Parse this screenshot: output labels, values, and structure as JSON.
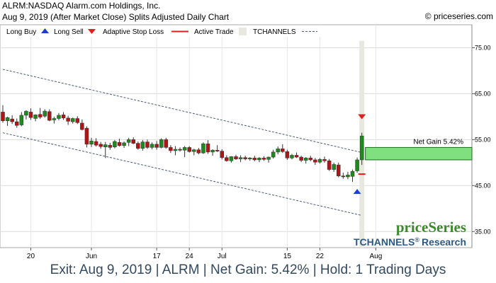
{
  "header": {
    "title": "ALRM:NASDAQ Alarm.com Holdings, Inc.",
    "subtitle": "Aug 9, 2019 (After Market Close)  Splits Adjusted Daily Chart",
    "copyright": "© priceseries.com"
  },
  "legend": {
    "long_buy": "Long Buy",
    "long_sell": "Long Sell",
    "stop": "Adaptive Stop Loss",
    "active": "Active Trade",
    "tchannels": "TCHANNELS"
  },
  "brand": {
    "logo": "priceSeries",
    "research": "TCHANNELS",
    "reg": "®",
    "research_suffix": "Research"
  },
  "footer": "Exit: Aug 9, 2019 | ALRM | Net Gain: 5.42% | Hold: 1 Trading Days",
  "net_gain_label": "Net Gain 5.42%",
  "colors": {
    "up": "#1c8a1c",
    "down": "#b01515",
    "buy_arrow": "#1a3fd6",
    "sell_arrow": "#e0201c",
    "stop": "#e0201c",
    "active": "#e8e8e0",
    "channel": "#4a5a78",
    "gain": "#80e080"
  },
  "chart_data": {
    "type": "candlestick",
    "y_ticks": [
      "75.00",
      "65.00",
      "55.00",
      "45.00",
      "35.00"
    ],
    "y_values": [
      75,
      65,
      55,
      45,
      35
    ],
    "ylim": [
      31.5,
      80
    ],
    "x_ticks": [
      "20",
      "Jun",
      "17",
      "24",
      "Jul",
      "15",
      "22",
      "Aug"
    ],
    "x_tick_index": [
      6,
      19,
      33,
      40,
      47,
      61,
      68,
      80
    ],
    "candles": [
      [
        61,
        62.5,
        58.7,
        59.1
      ],
      [
        59.1,
        60,
        58,
        59.8
      ],
      [
        59.5,
        60.3,
        58.4,
        58.9
      ],
      [
        58.9,
        59.6,
        57.6,
        58.1
      ],
      [
        58.2,
        61,
        57.9,
        60.3
      ],
      [
        60.3,
        61.4,
        59.4,
        61.2
      ],
      [
        61,
        61.8,
        59.3,
        59.8
      ],
      [
        59.6,
        60.5,
        59,
        60.4
      ],
      [
        60.5,
        61.9,
        59.5,
        59.9
      ],
      [
        60.1,
        61.6,
        59.8,
        61.2
      ],
      [
        61.1,
        61.6,
        59,
        59.2
      ],
      [
        59.3,
        60,
        58.5,
        59.6
      ],
      [
        59.6,
        60.8,
        59.2,
        60.3
      ],
      [
        60.4,
        61,
        59.3,
        59.7
      ],
      [
        59.7,
        60.2,
        58.2,
        59
      ],
      [
        58.9,
        59.8,
        58.5,
        59.6
      ],
      [
        59.6,
        60.1,
        58.4,
        58.7
      ],
      [
        58.6,
        59.4,
        57,
        57.2
      ],
      [
        57.5,
        57.9,
        53.3,
        54
      ],
      [
        54,
        55.4,
        53.4,
        54.7
      ],
      [
        54.6,
        55.3,
        53.5,
        53.8
      ],
      [
        54,
        54.5,
        53,
        53.5
      ],
      [
        53.4,
        54.5,
        51,
        53.9
      ],
      [
        53.8,
        54.3,
        52.8,
        53.3
      ],
      [
        53.4,
        54.9,
        53.1,
        54.6
      ],
      [
        54.4,
        55.2,
        53.5,
        53.7
      ],
      [
        53.7,
        54.6,
        53.2,
        54.3
      ],
      [
        54.4,
        55.4,
        53.6,
        55
      ],
      [
        55,
        55.5,
        54,
        54.2
      ],
      [
        54.2,
        54.6,
        52.8,
        53.1
      ],
      [
        53.1,
        54.9,
        52.6,
        54.5
      ],
      [
        54.5,
        55,
        53,
        53.3
      ],
      [
        53.3,
        54.4,
        52.9,
        54
      ],
      [
        54,
        54.7,
        52.8,
        53.3
      ],
      [
        53.3,
        55.3,
        53.1,
        55
      ],
      [
        55,
        55.4,
        53,
        53.3
      ],
      [
        53.3,
        53.8,
        52.1,
        52.6
      ],
      [
        52.6,
        53.6,
        51.6,
        52.9
      ],
      [
        52.9,
        53.3,
        52.4,
        52.7
      ],
      [
        52.7,
        53.6,
        51.2,
        53.3
      ],
      [
        53.3,
        53.6,
        52.2,
        52.4
      ],
      [
        52.4,
        53,
        51.6,
        52.8
      ],
      [
        52.8,
        53.2,
        51.8,
        52.1
      ],
      [
        52.1,
        54.4,
        51.9,
        54.1
      ],
      [
        54.1,
        54.9,
        51.9,
        52.3
      ],
      [
        52.3,
        52.9,
        51.5,
        52.7
      ],
      [
        52.7,
        53.8,
        52.3,
        52.5
      ],
      [
        52.5,
        52.9,
        50.7,
        51.1
      ],
      [
        51.1,
        51.6,
        50.2,
        50.4
      ],
      [
        50.4,
        51.4,
        50,
        51.3
      ],
      [
        51.3,
        51.7,
        50.6,
        50.8
      ],
      [
        50.8,
        51.6,
        50.1,
        51.1
      ],
      [
        51.1,
        51.5,
        50.5,
        50.8
      ],
      [
        50.8,
        51.2,
        50.4,
        51
      ],
      [
        51,
        51.5,
        50.3,
        50.6
      ],
      [
        50.6,
        51.2,
        50.1,
        51
      ],
      [
        51,
        51.4,
        50.4,
        50.7
      ],
      [
        50.7,
        51.3,
        50,
        51.2
      ],
      [
        51.2,
        52.8,
        50.9,
        52.3
      ],
      [
        52.3,
        53.5,
        51.8,
        53
      ],
      [
        53,
        54,
        52.1,
        52.4
      ],
      [
        52.4,
        52.8,
        50.6,
        51
      ],
      [
        51,
        51.9,
        50.7,
        51.6
      ],
      [
        51.6,
        52.2,
        51,
        51.2
      ],
      [
        51.2,
        51.5,
        50.1,
        50.5
      ],
      [
        50.5,
        51.2,
        49.8,
        51
      ],
      [
        51,
        51.5,
        50.3,
        50.6
      ],
      [
        50.6,
        51,
        49.5,
        50.1
      ],
      [
        50.1,
        51,
        49.8,
        50.7
      ],
      [
        50.7,
        51.3,
        50,
        50.4
      ],
      [
        50.4,
        50.8,
        48.2,
        48.5
      ],
      [
        48.5,
        50,
        48,
        49.6
      ],
      [
        49.5,
        50,
        46.8,
        47.1
      ],
      [
        47.1,
        47.8,
        46.5,
        46.9
      ],
      [
        46.9,
        48,
        46.4,
        47.3
      ],
      [
        47,
        48.5,
        45.8,
        48.1
      ],
      [
        48.2,
        51.1,
        47.8,
        50.6
      ],
      [
        50.6,
        56.5,
        49.5,
        55.8
      ]
    ],
    "channel_upper": [
      [
        0,
        70.3
      ],
      [
        77,
        52.2
      ]
    ],
    "channel_lower": [
      [
        0,
        56.5
      ],
      [
        77,
        38.5
      ]
    ],
    "long_buy": {
      "index": 76,
      "price": 43.8
    },
    "long_sell": {
      "index": 77,
      "price": 59.9
    },
    "stop_loss": {
      "index": 77,
      "price": 47.5
    },
    "active_trade": {
      "index": 77,
      "from": 31.5,
      "to": 76.5
    },
    "net_gain": {
      "from": 50.6,
      "to": 53.3,
      "label": "Net Gain 5.42%"
    }
  }
}
